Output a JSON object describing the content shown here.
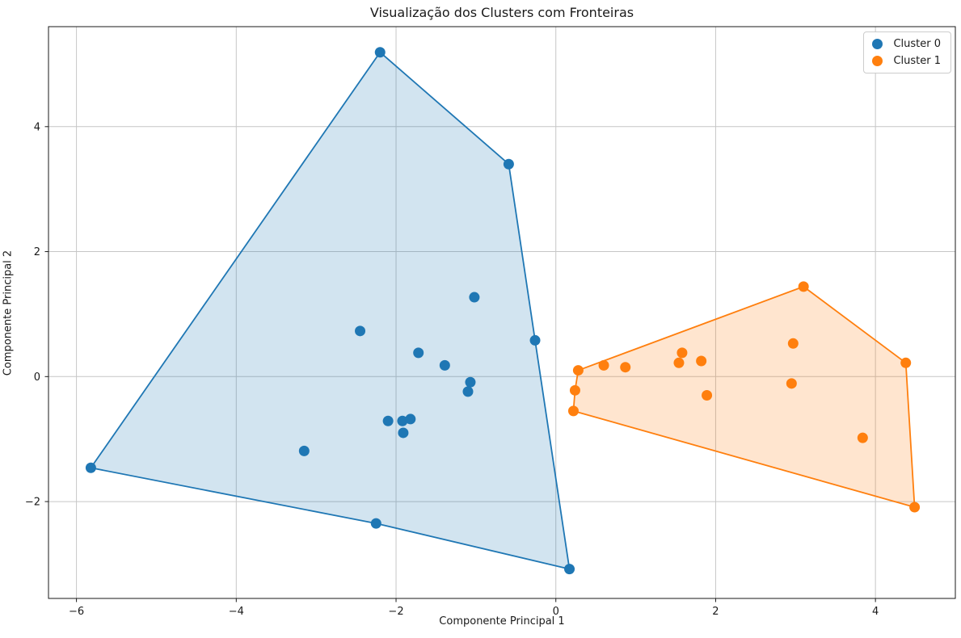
{
  "figure": {
    "background": "#ffffff",
    "text_color": "#1a1a1a",
    "spine_color": "#1a1a1a"
  },
  "chart_data": {
    "type": "scatter",
    "title": "Visualização dos Clusters com Fronteiras",
    "xlabel": "Componente Principal 1",
    "ylabel": "Componente Principal 2",
    "xlim": [
      -6.35,
      5.0
    ],
    "ylim": [
      -3.55,
      5.6
    ],
    "xticks": [
      -6,
      -4,
      -2,
      0,
      2,
      4
    ],
    "yticks": [
      -2,
      0,
      2,
      4
    ],
    "grid": true,
    "grid_color": "#c6c6c6",
    "legend_position": "upper right",
    "marker_radius": 6.5,
    "hull_alpha": 0.2,
    "series": [
      {
        "name": "Cluster 0",
        "color": "#1f77b4",
        "points": [
          [
            -2.2,
            5.19
          ],
          [
            -0.59,
            3.4
          ],
          [
            -0.26,
            0.58
          ],
          [
            0.17,
            -3.08
          ],
          [
            -2.25,
            -2.35
          ],
          [
            -5.82,
            -1.46
          ],
          [
            -2.45,
            0.73
          ],
          [
            -1.02,
            1.27
          ],
          [
            -1.72,
            0.38
          ],
          [
            -1.39,
            0.18
          ],
          [
            -1.07,
            -0.09
          ],
          [
            -1.1,
            -0.24
          ],
          [
            -2.1,
            -0.71
          ],
          [
            -1.92,
            -0.71
          ],
          [
            -1.82,
            -0.68
          ],
          [
            -1.91,
            -0.9
          ],
          [
            -3.15,
            -1.19
          ]
        ],
        "hull": [
          [
            -2.2,
            5.19
          ],
          [
            -0.59,
            3.4
          ],
          [
            -0.26,
            0.58
          ],
          [
            0.17,
            -3.08
          ],
          [
            -2.25,
            -2.35
          ],
          [
            -5.82,
            -1.46
          ]
        ]
      },
      {
        "name": "Cluster 1",
        "color": "#ff7f0e",
        "points": [
          [
            0.28,
            0.1
          ],
          [
            3.1,
            1.44
          ],
          [
            4.38,
            0.22
          ],
          [
            4.49,
            -2.09
          ],
          [
            0.22,
            -0.55
          ],
          [
            0.24,
            -0.22
          ],
          [
            0.6,
            0.18
          ],
          [
            0.87,
            0.15
          ],
          [
            1.54,
            0.22
          ],
          [
            1.58,
            0.38
          ],
          [
            1.82,
            0.25
          ],
          [
            1.89,
            -0.3
          ],
          [
            2.97,
            0.53
          ],
          [
            2.95,
            -0.11
          ],
          [
            3.84,
            -0.98
          ]
        ],
        "hull": [
          [
            0.28,
            0.1
          ],
          [
            3.1,
            1.44
          ],
          [
            4.38,
            0.22
          ],
          [
            4.49,
            -2.09
          ],
          [
            0.22,
            -0.55
          ],
          [
            0.24,
            -0.22
          ]
        ]
      }
    ]
  },
  "legend": {
    "items": [
      {
        "label": "Cluster 0",
        "color": "#1f77b4"
      },
      {
        "label": "Cluster 1",
        "color": "#ff7f0e"
      }
    ]
  }
}
